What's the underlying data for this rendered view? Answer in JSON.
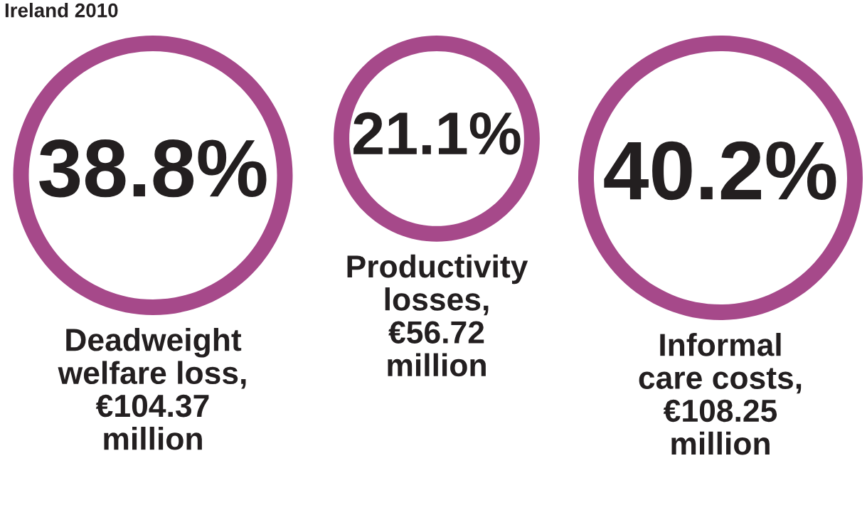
{
  "chart_data": {
    "type": "other",
    "title": "Ireland 2010",
    "categories": [
      "Deadweight\nwelfare loss,\n€104.37\nmillion",
      "Productivity\nlosses,\n€56.72\nmillion",
      "Informal\ncare costs,\n€108.25\nmillion"
    ],
    "values": [
      38.8,
      21.1,
      40.2
    ],
    "value_labels": [
      "38.8%",
      "21.1%",
      "40.2%"
    ],
    "color": "#a6498a"
  }
}
